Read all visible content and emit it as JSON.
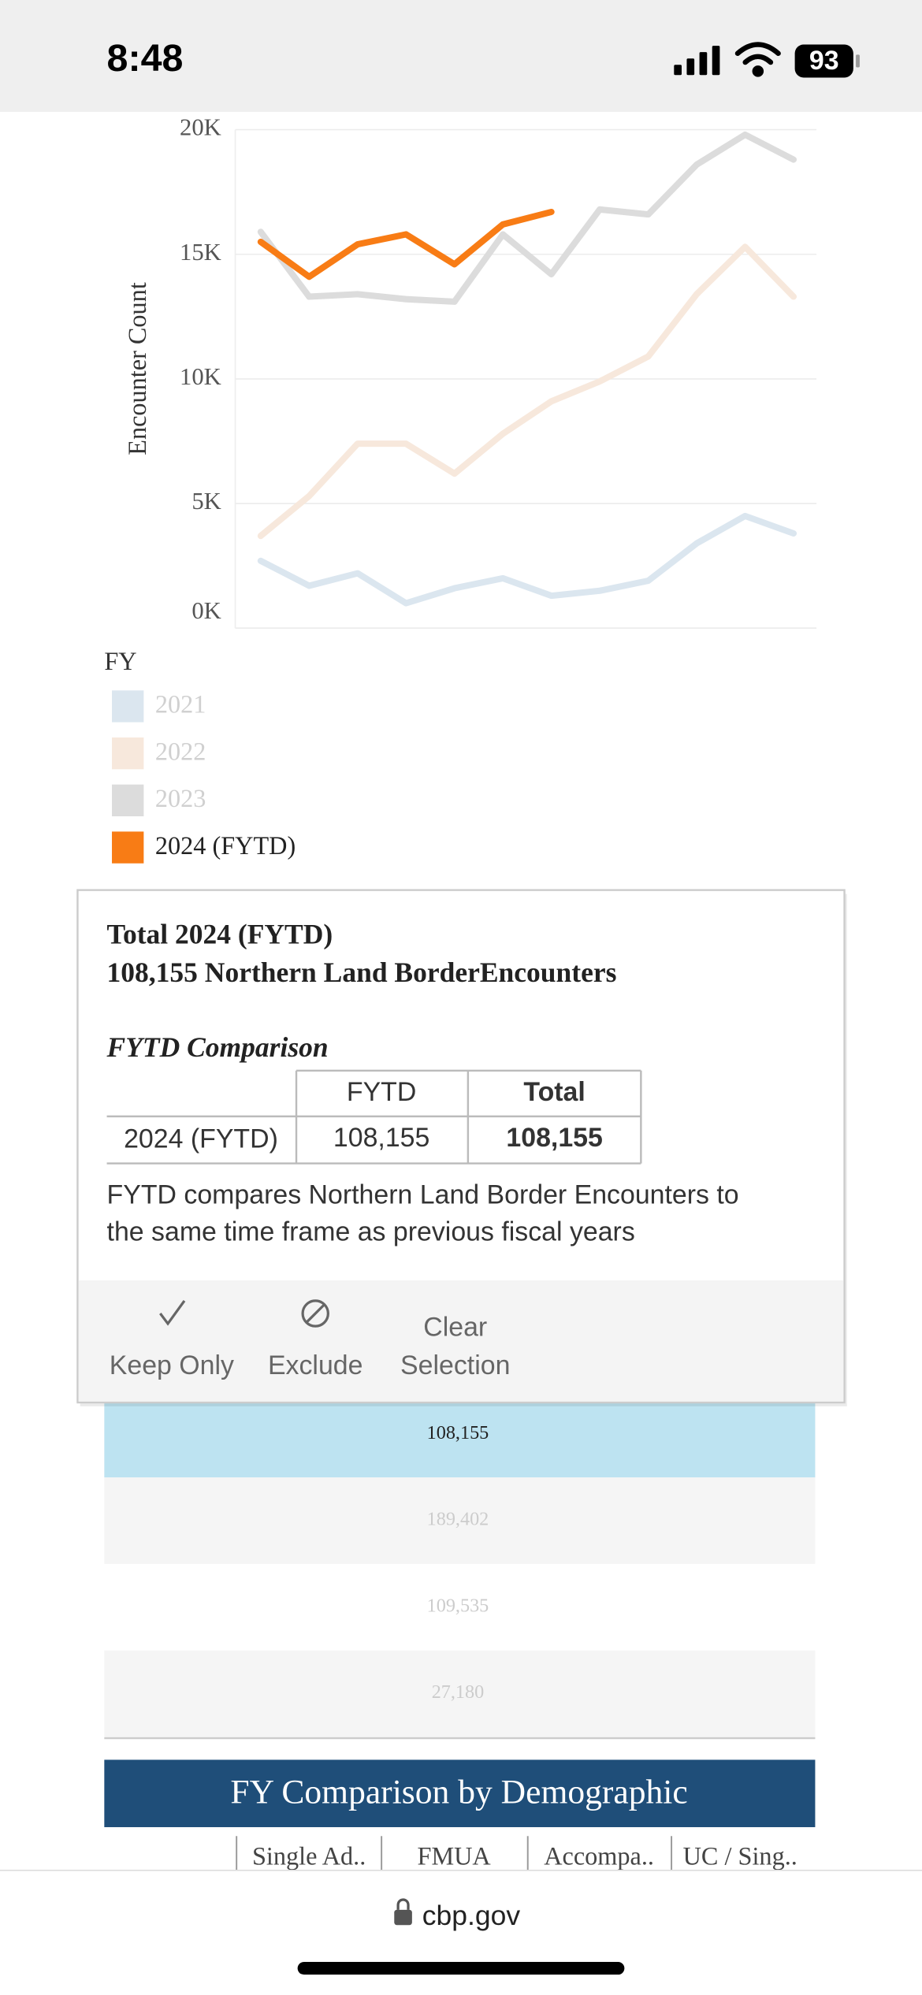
{
  "status_bar": {
    "time": "8:48",
    "battery": "93"
  },
  "chart_data": {
    "type": "line",
    "y_label": "Encounter Count",
    "categories": [
      null,
      null,
      null,
      null,
      null,
      null,
      null,
      null,
      null,
      null,
      null,
      null
    ],
    "ylim": [
      0,
      20000
    ],
    "yticks": [
      {
        "value": 0,
        "label": "0K"
      },
      {
        "value": 5000,
        "label": "5K"
      },
      {
        "value": 10000,
        "label": "10K"
      },
      {
        "value": 15000,
        "label": "15K"
      },
      {
        "value": 20000,
        "label": "20K"
      }
    ],
    "grid": true,
    "legend_title": "FY",
    "selected": "2024 (FYTD)",
    "series": [
      {
        "name": "2021",
        "color": "#dbe6ef",
        "values": [
          2700,
          1700,
          2200,
          1000,
          1600,
          2000,
          1300,
          1500,
          1900,
          3400,
          4500,
          3800
        ]
      },
      {
        "name": "2022",
        "color": "#f7e8dc",
        "values": [
          3700,
          5300,
          7400,
          7400,
          6200,
          7800,
          9100,
          9900,
          10900,
          13400,
          15300,
          13300
        ]
      },
      {
        "name": "2023",
        "color": "#dcdcdc",
        "values": [
          15900,
          13300,
          13400,
          13200,
          13100,
          15800,
          14200,
          16800,
          16600,
          18600,
          19800,
          18800
        ]
      },
      {
        "name": "2024 (FYTD)",
        "color": "#f87c15",
        "values": [
          15500,
          14100,
          15400,
          15800,
          14600,
          16200,
          16700,
          null,
          null,
          null,
          null,
          null
        ]
      }
    ]
  },
  "tooltip": {
    "title": "Total 2024 (FYTD)",
    "subtitle": "108,155 Northern Land BorderEncounters",
    "section": "FYTD Comparison",
    "table": {
      "headers": [
        "FYTD",
        "Total"
      ],
      "row": [
        "2024 (FYTD)",
        "108,155",
        "108,155"
      ]
    },
    "note": [
      "FYTD compares Northern Land Border Encounters to",
      "the same time frame as previous fiscal years"
    ],
    "actions": {
      "keep": "Keep Only",
      "exclude": "Exclude",
      "clear": [
        "Clear",
        "Selection"
      ]
    }
  },
  "totals": [
    "108,155",
    "189,402",
    "109,535",
    "27,180"
  ],
  "section_title": "FY Comparison by Demographic",
  "columns": [
    "Single Ad..",
    "FMUA",
    "Accompa..",
    "UC / Sing.."
  ],
  "url": "cbp.gov"
}
